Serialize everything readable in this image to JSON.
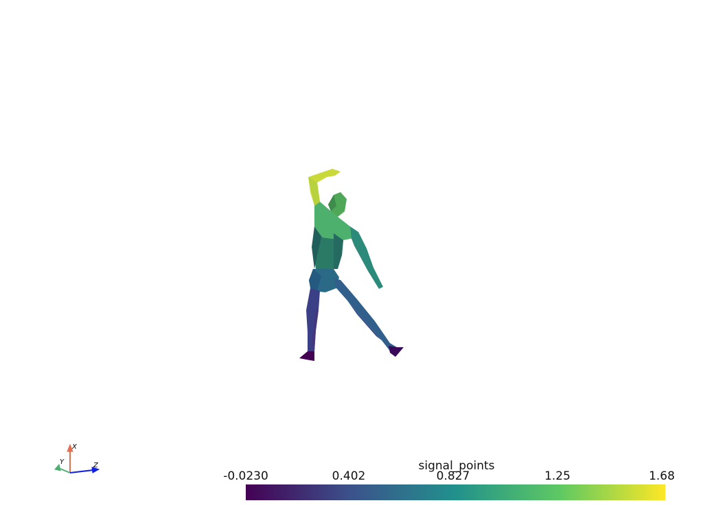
{
  "scalar_bar": {
    "title": "signal_points",
    "ticks": [
      "-0.0230",
      "0.402",
      "0.827",
      "1.25",
      "1.68"
    ],
    "range": [
      -0.023,
      1.68
    ],
    "colormap": "viridis",
    "colors": [
      "#440154",
      "#3b528b",
      "#21918c",
      "#5ec962",
      "#fde725"
    ]
  },
  "orientation_axes": {
    "x_label": "X",
    "y_label": "Y",
    "z_label": "Z",
    "x_color": "#e07050",
    "y_color": "#4caf70",
    "z_color": "#1020e0"
  },
  "scene": {
    "background": "#ffffff",
    "mesh": "human-figure"
  }
}
